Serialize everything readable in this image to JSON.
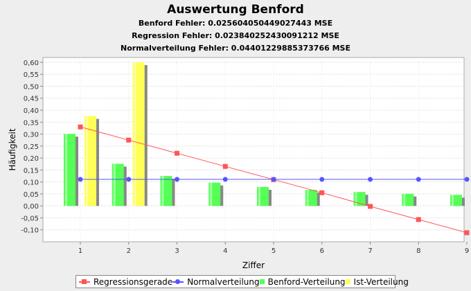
{
  "chart_data": {
    "type": "bar",
    "title": "Auswertung Benford",
    "subtitles": [
      "Benford Fehler: 0.025604050449027443 MSE",
      "Regression Fehler: 0.023840252430091212 MSE",
      "Normalverteilung Fehler: 0.04401229885373766 MSE"
    ],
    "xlabel": "Ziffer",
    "ylabel": "Häufigkeit",
    "categories": [
      "1",
      "2",
      "3",
      "4",
      "5",
      "6",
      "7",
      "8",
      "9"
    ],
    "ylim": [
      -0.15,
      0.62
    ],
    "yticks": [
      "0,60",
      "0,55",
      "0,50",
      "0,45",
      "0,40",
      "0,35",
      "0,30",
      "0,25",
      "0,20",
      "0,15",
      "0,10",
      "0,05",
      "0,00",
      "-0,05",
      "-0,10"
    ],
    "grid": true,
    "legend_position": "bottom",
    "series": [
      {
        "name": "Regressionsgerade",
        "kind": "line",
        "marker": "square",
        "color": "#ff5555",
        "values": [
          0.33,
          0.275,
          0.22,
          0.165,
          0.11,
          0.055,
          -0.002,
          -0.057,
          -0.112
        ]
      },
      {
        "name": "Normalverteilung",
        "kind": "line",
        "marker": "circle",
        "color": "#5555ff",
        "values": [
          0.111,
          0.111,
          0.111,
          0.111,
          0.111,
          0.111,
          0.111,
          0.111,
          0.111
        ]
      },
      {
        "name": "Benford-Verteilung",
        "kind": "bar",
        "color": "#55ff55",
        "values": [
          0.301,
          0.176,
          0.125,
          0.097,
          0.079,
          0.067,
          0.058,
          0.051,
          0.046
        ]
      },
      {
        "name": "Ist-Verteilung",
        "kind": "bar",
        "color": "#ffff55",
        "values": [
          0.375,
          0.6,
          0,
          0,
          0,
          0,
          0,
          0,
          0
        ]
      }
    ]
  }
}
